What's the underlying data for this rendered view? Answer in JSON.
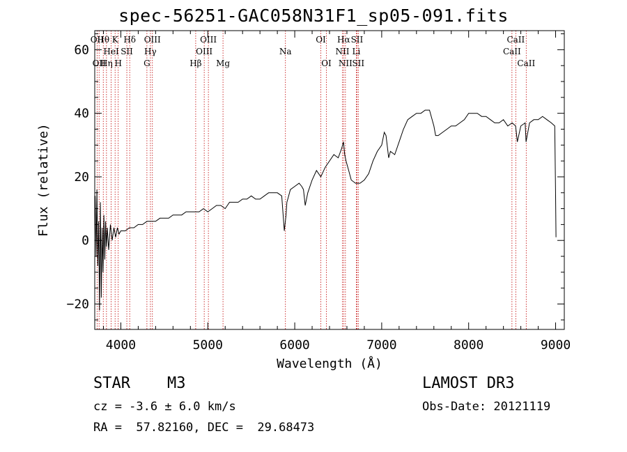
{
  "chart_data": {
    "type": "line",
    "title": "spec-56251-GAC058N31F1_sp05-091.fits",
    "xlabel": "Wavelength (Å)",
    "ylabel": "Flux (relative)",
    "xlim": [
      3700,
      9100
    ],
    "ylim": [
      -28,
      66
    ],
    "xticks": [
      4000,
      5000,
      6000,
      7000,
      8000,
      9000
    ],
    "yticks": [
      -20,
      0,
      20,
      40,
      60
    ],
    "series": [
      {
        "name": "spectrum",
        "x": [
          3705,
          3715,
          3725,
          3735,
          3745,
          3755,
          3765,
          3775,
          3785,
          3795,
          3805,
          3815,
          3825,
          3835,
          3845,
          3860,
          3880,
          3900,
          3920,
          3940,
          3960,
          3980,
          4000,
          4050,
          4100,
          4150,
          4200,
          4250,
          4300,
          4350,
          4400,
          4450,
          4500,
          4550,
          4600,
          4650,
          4700,
          4750,
          4800,
          4850,
          4900,
          4950,
          5000,
          5050,
          5100,
          5150,
          5200,
          5250,
          5300,
          5350,
          5400,
          5450,
          5500,
          5550,
          5600,
          5650,
          5700,
          5750,
          5800,
          5850,
          5880,
          5900,
          5910,
          5920,
          5950,
          6000,
          6050,
          6080,
          6100,
          6120,
          6150,
          6200,
          6250,
          6300,
          6350,
          6400,
          6450,
          6500,
          6540,
          6560,
          6575,
          6590,
          6620,
          6650,
          6700,
          6750,
          6800,
          6850,
          6900,
          6950,
          7000,
          7030,
          7050,
          7080,
          7100,
          7150,
          7200,
          7250,
          7300,
          7350,
          7400,
          7450,
          7500,
          7550,
          7600,
          7620,
          7650,
          7700,
          7750,
          7800,
          7850,
          7900,
          7950,
          8000,
          8050,
          8100,
          8150,
          8200,
          8250,
          8300,
          8350,
          8400,
          8450,
          8500,
          8540,
          8560,
          8600,
          8650,
          8660,
          8700,
          8750,
          8800,
          8850,
          8900,
          8950,
          8990,
          9000,
          9005
        ],
        "values": [
          14,
          -5,
          16,
          -8,
          6,
          -22,
          12,
          -18,
          4,
          -10,
          8,
          -6,
          6,
          -2,
          4,
          -3,
          5,
          0,
          4,
          1,
          4,
          2,
          3,
          3,
          4,
          4,
          5,
          5,
          6,
          6,
          6,
          7,
          7,
          7,
          8,
          8,
          8,
          9,
          9,
          9,
          9,
          10,
          9,
          10,
          11,
          11,
          10,
          12,
          12,
          12,
          13,
          13,
          14,
          13,
          13,
          14,
          15,
          15,
          15,
          14,
          3,
          8,
          12,
          13,
          16,
          17,
          18,
          17,
          16,
          11,
          15,
          19,
          22,
          20,
          23,
          25,
          27,
          26,
          29,
          31,
          27,
          25,
          22,
          19,
          18,
          18,
          19,
          21,
          25,
          28,
          30,
          34,
          33,
          26,
          28,
          27,
          31,
          35,
          38,
          39,
          40,
          40,
          41,
          41,
          36,
          33,
          33,
          34,
          35,
          36,
          36,
          37,
          38,
          40,
          40,
          40,
          39,
          39,
          38,
          37,
          37,
          38,
          36,
          37,
          36,
          31,
          36,
          37,
          31,
          37,
          38,
          38,
          39,
          38,
          37,
          36,
          14,
          1
        ]
      }
    ],
    "lines": [
      {
        "wl": 3727,
        "label": "OII",
        "row": 1
      },
      {
        "wl": 3750,
        "label": "OII",
        "row": 3
      },
      {
        "wl": 3798,
        "label": "Hθ",
        "row": 1
      },
      {
        "wl": 3835,
        "label": "Hη",
        "row": 3
      },
      {
        "wl": 3889,
        "label": "HeI",
        "row": 2
      },
      {
        "wl": 3934,
        "label": "K",
        "row": 1
      },
      {
        "wl": 3970,
        "label": "H",
        "row": 3
      },
      {
        "wl": 4069,
        "label": "SII",
        "row": 2
      },
      {
        "wl": 4102,
        "label": "Hδ",
        "row": 1
      },
      {
        "wl": 4300,
        "label": "G",
        "row": 3
      },
      {
        "wl": 4340,
        "label": "Hγ",
        "row": 2
      },
      {
        "wl": 4363,
        "label": "OIII",
        "row": 1
      },
      {
        "wl": 4861,
        "label": "Hβ",
        "row": 3
      },
      {
        "wl": 4959,
        "label": "OIII",
        "row": 2
      },
      {
        "wl": 5007,
        "label": "OIII",
        "row": 1
      },
      {
        "wl": 5175,
        "label": "Mg",
        "row": 3
      },
      {
        "wl": 5893,
        "label": "Na",
        "row": 2
      },
      {
        "wl": 6300,
        "label": "OI",
        "row": 1
      },
      {
        "wl": 6364,
        "label": "OI",
        "row": 3
      },
      {
        "wl": 6548,
        "label": "NII",
        "row": 2
      },
      {
        "wl": 6563,
        "label": "Hα",
        "row": 1
      },
      {
        "wl": 6583,
        "label": "NII",
        "row": 3
      },
      {
        "wl": 6708,
        "label": "Li",
        "row": 2
      },
      {
        "wl": 6716,
        "label": "SII",
        "row": 1
      },
      {
        "wl": 6731,
        "label": "SII",
        "row": 3
      },
      {
        "wl": 8498,
        "label": "CaII",
        "row": 2
      },
      {
        "wl": 8542,
        "label": "CaII",
        "row": 1
      },
      {
        "wl": 8662,
        "label": "CaII",
        "row": 3
      }
    ]
  },
  "info": {
    "object_type": "STAR",
    "subclass": "M3",
    "survey": "LAMOST DR3",
    "cz_text": "cz = -3.6 ± 6.0 km/s",
    "obs_date_text": "Obs-Date: 20121119",
    "coords_text": "RA =  57.82160, DEC =  29.68473"
  },
  "colors": {
    "line_marker": "#c00000",
    "spectrum": "#000000",
    "axis": "#000000"
  }
}
